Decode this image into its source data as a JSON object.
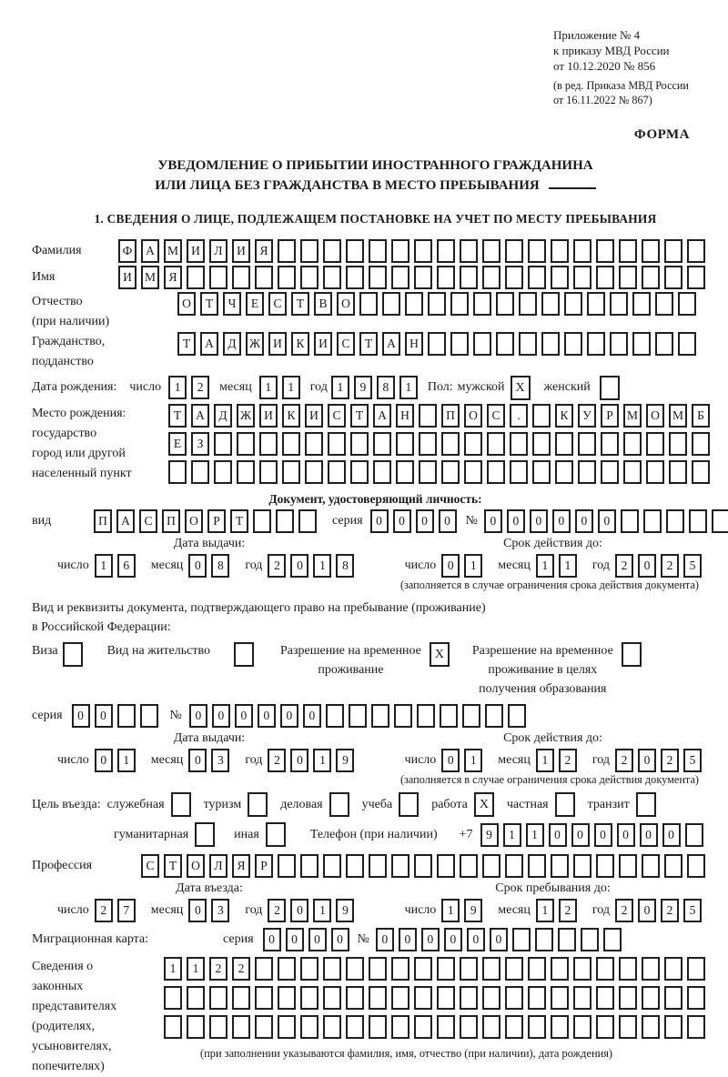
{
  "doc": {
    "annex": [
      "Приложение № 4",
      "к приказу МВД России",
      "от 10.12.2020 № 856"
    ],
    "annex_edit": [
      "(в ред. Приказа МВД России",
      "от 16.11.2022 № 867)"
    ],
    "forma": "ФОРМА",
    "title1": "УВЕДОМЛЕНИЕ О ПРИБЫТИИ ИНОСТРАННОГО ГРАЖДАНИНА",
    "title2": "ИЛИ ЛИЦА БЕЗ ГРАЖДАНСТВА В МЕСТО ПРЕБЫВАНИЯ",
    "section1": "1. СВЕДЕНИЯ О ЛИЦЕ, ПОДЛЕЖАЩЕМ ПОСТАНОВКЕ НА УЧЕТ ПО МЕСТУ ПРЕБЫВАНИЯ"
  },
  "labels": {
    "surname": "Фамилия",
    "name": "Имя",
    "patronymic": "Отчество",
    "patronymic2": "(при наличии)",
    "citizenship": "Гражданство,",
    "citizenship2": "подданство",
    "birthdate": "Дата рождения:",
    "day": "число",
    "month": "месяц",
    "year": "год",
    "sex": "Пол:",
    "male": "мужской",
    "female": "женский",
    "birthplace": "Место рождения:",
    "birthplace2": "государство",
    "birthplace3": "город или другой",
    "birthplace4": "населенный пункт",
    "iddoc_header": "Документ, удостоверяющий личность:",
    "kind": "вид",
    "series": "серия",
    "number": "№",
    "issue_date": "Дата выдачи:",
    "valid_until": "Срок действия до:",
    "valid_note": "(заполняется в случае ограничения срока действия документа)",
    "residence1": "Вид и реквизиты документа, подтверждающего право на пребывание (проживание)",
    "residence2": "в Российской Федерации:",
    "visa": "Виза",
    "residence_permit": "Вид на жительство",
    "rvp1": "Разрешение на временное",
    "rvp2": "проживание",
    "rvpo1": "Разрешение на временное",
    "rvpo2": "проживание в целях",
    "rvpo3": "получения образования",
    "purpose": "Цель въезда:",
    "official": "служебная",
    "tourism": "туризм",
    "business": "деловая",
    "study": "учеба",
    "work": "работа",
    "private": "частная",
    "transit": "транзит",
    "humanitarian": "гуманитарная",
    "other": "иная",
    "phone": "Телефон (при наличии)",
    "phone_prefix": "+7",
    "profession": "Профессия",
    "entry_date": "Дата въезда:",
    "stay_until": "Срок пребывания до:",
    "migration_card": "Миграционная карта:",
    "reps1": "Сведения о",
    "reps2": "законных",
    "reps3": "представителях",
    "reps4": "(родителях,",
    "reps5": "усыновителях,",
    "reps6": "попечителях)",
    "reps_note": "(при заполнении указываются фамилия, имя, отчество (при наличии), дата рождения)"
  },
  "values": {
    "surname": {
      "content": "ФАМИЛИЯ",
      "count": 26
    },
    "name": {
      "content": "ИМЯ",
      "count": 26
    },
    "patronymic": {
      "content": "ОТЧЕСТВО",
      "count": 23
    },
    "citizenship": {
      "content": "ТАДЖИКИСТАН",
      "count": 23
    },
    "birth_day": {
      "content": "12",
      "count": 2
    },
    "birth_month": {
      "content": "11",
      "count": 2
    },
    "birth_year": {
      "content": "1981",
      "count": 4
    },
    "sex_male": {
      "content": "X",
      "count": 1
    },
    "sex_female": {
      "content": "",
      "count": 1
    },
    "birthplace1": {
      "content": "ТАДЖИКИСТАН ПОС. КУРМОМБ",
      "count": 24
    },
    "birthplace2": {
      "content": "ЕЗ",
      "count": 24
    },
    "birthplace3": {
      "content": "",
      "count": 24
    },
    "doc_kind": {
      "content": "ПАСПОРТ",
      "count": 10
    },
    "doc_series": {
      "content": "0000",
      "count": 4
    },
    "doc_number": {
      "content": "000000",
      "count": 11
    },
    "doc_issue_day": {
      "content": "16",
      "count": 2
    },
    "doc_issue_month": {
      "content": "08",
      "count": 2
    },
    "doc_issue_year": {
      "content": "2018",
      "count": 4
    },
    "doc_valid_day": {
      "content": "01",
      "count": 2
    },
    "doc_valid_month": {
      "content": "11",
      "count": 2
    },
    "doc_valid_year": {
      "content": "2025",
      "count": 4
    },
    "cb_visa": {
      "content": "",
      "count": 1
    },
    "cb_residence": {
      "content": "",
      "count": 1
    },
    "cb_rvp": {
      "content": "X",
      "count": 1
    },
    "cb_rvpo": {
      "content": "",
      "count": 1
    },
    "permit_series": {
      "content": "00",
      "count": 4
    },
    "permit_number": {
      "content": "000000",
      "count": 15
    },
    "permit_issue_day": {
      "content": "01",
      "count": 2
    },
    "permit_issue_month": {
      "content": "03",
      "count": 2
    },
    "permit_issue_year": {
      "content": "2019",
      "count": 4
    },
    "permit_valid_day": {
      "content": "01",
      "count": 2
    },
    "permit_valid_month": {
      "content": "12",
      "count": 2
    },
    "permit_valid_year": {
      "content": "2025",
      "count": 4
    },
    "cb_official": {
      "content": "",
      "count": 1
    },
    "cb_tourism": {
      "content": "",
      "count": 1
    },
    "cb_business": {
      "content": "",
      "count": 1
    },
    "cb_study": {
      "content": "",
      "count": 1
    },
    "cb_work": {
      "content": "X",
      "count": 1
    },
    "cb_private": {
      "content": "",
      "count": 1
    },
    "cb_transit": {
      "content": "",
      "count": 1
    },
    "cb_humanitarian": {
      "content": "",
      "count": 1
    },
    "cb_other": {
      "content": "",
      "count": 1
    },
    "phone": {
      "content": "911000000",
      "count": 10
    },
    "profession": {
      "content": "СТОЛЯР",
      "count": 25
    },
    "entry_day": {
      "content": "27",
      "count": 2
    },
    "entry_month": {
      "content": "03",
      "count": 2
    },
    "entry_year": {
      "content": "2019",
      "count": 4
    },
    "stay_day": {
      "content": "19",
      "count": 2
    },
    "stay_month": {
      "content": "12",
      "count": 2
    },
    "stay_year": {
      "content": "2025",
      "count": 4
    },
    "mk_series": {
      "content": "0000",
      "count": 4
    },
    "mk_number": {
      "content": "000000",
      "count": 11
    },
    "reps_row1": {
      "content": "1122",
      "count": 24
    },
    "reps_row2": {
      "content": "",
      "count": 24
    },
    "reps_row3": {
      "content": "",
      "count": 24
    }
  }
}
